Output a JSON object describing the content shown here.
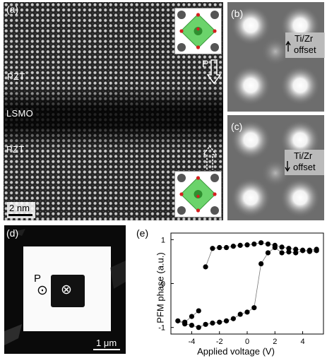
{
  "panel_a": {
    "label": "(a)",
    "layers": [
      "PZT",
      "LSMO",
      "PZT"
    ],
    "polarization_label": "P",
    "scale_bar": "2 nm"
  },
  "panel_b": {
    "label": "(b)",
    "offset_text_1": "Ti/Zr",
    "offset_text_2": "offset"
  },
  "panel_c": {
    "label": "(c)",
    "offset_text_1": "Ti/Zr",
    "offset_text_2": "offset"
  },
  "panel_d": {
    "label": "(d)",
    "polarization_label": "P",
    "dot_symbol": "⊙",
    "cross_symbol": "⊗",
    "scale_bar": "1 μm"
  },
  "panel_e": {
    "label": "(e)"
  },
  "chart_data": {
    "type": "scatter",
    "xlabel": "Applied voltage (V)",
    "ylabel": "PFM phase (a.u.)",
    "xlim": [
      -5.5,
      5.5
    ],
    "ylim": [
      -1.15,
      1.15
    ],
    "xticks": [
      -4,
      -2,
      0,
      2,
      4
    ],
    "yticks": [
      -1,
      0,
      1
    ],
    "series": [
      {
        "x": [
          5.0,
          4.5,
          4.0,
          3.5,
          3.0,
          2.5,
          2.0,
          1.5,
          1.0,
          0.5,
          0.0,
          -0.5,
          -1.0,
          -1.5,
          -2.0,
          -2.5,
          -3.0
        ],
        "y": [
          0.78,
          0.76,
          0.76,
          0.78,
          0.8,
          0.83,
          0.87,
          0.9,
          0.93,
          0.9,
          0.88,
          0.87,
          0.85,
          0.82,
          0.82,
          0.8,
          0.38
        ]
      },
      {
        "x": [
          -3.5,
          -4.0,
          -4.5,
          -5.0,
          -4.5,
          -4.0,
          -3.5,
          -3.0,
          -2.5,
          -2.0,
          -1.5,
          -1.0,
          -0.5,
          0.0,
          0.5,
          1.0,
          1.5,
          2.0,
          2.5,
          3.0,
          3.5,
          4.0,
          4.5,
          5.0
        ],
        "y": [
          -0.62,
          -0.75,
          -0.88,
          -0.85,
          -0.92,
          -0.95,
          -1.0,
          -0.93,
          -0.9,
          -0.88,
          -0.85,
          -0.8,
          -0.7,
          -0.65,
          -0.55,
          0.45,
          0.7,
          0.82,
          0.7,
          0.72,
          0.7,
          0.75,
          0.73,
          0.75
        ]
      }
    ]
  }
}
